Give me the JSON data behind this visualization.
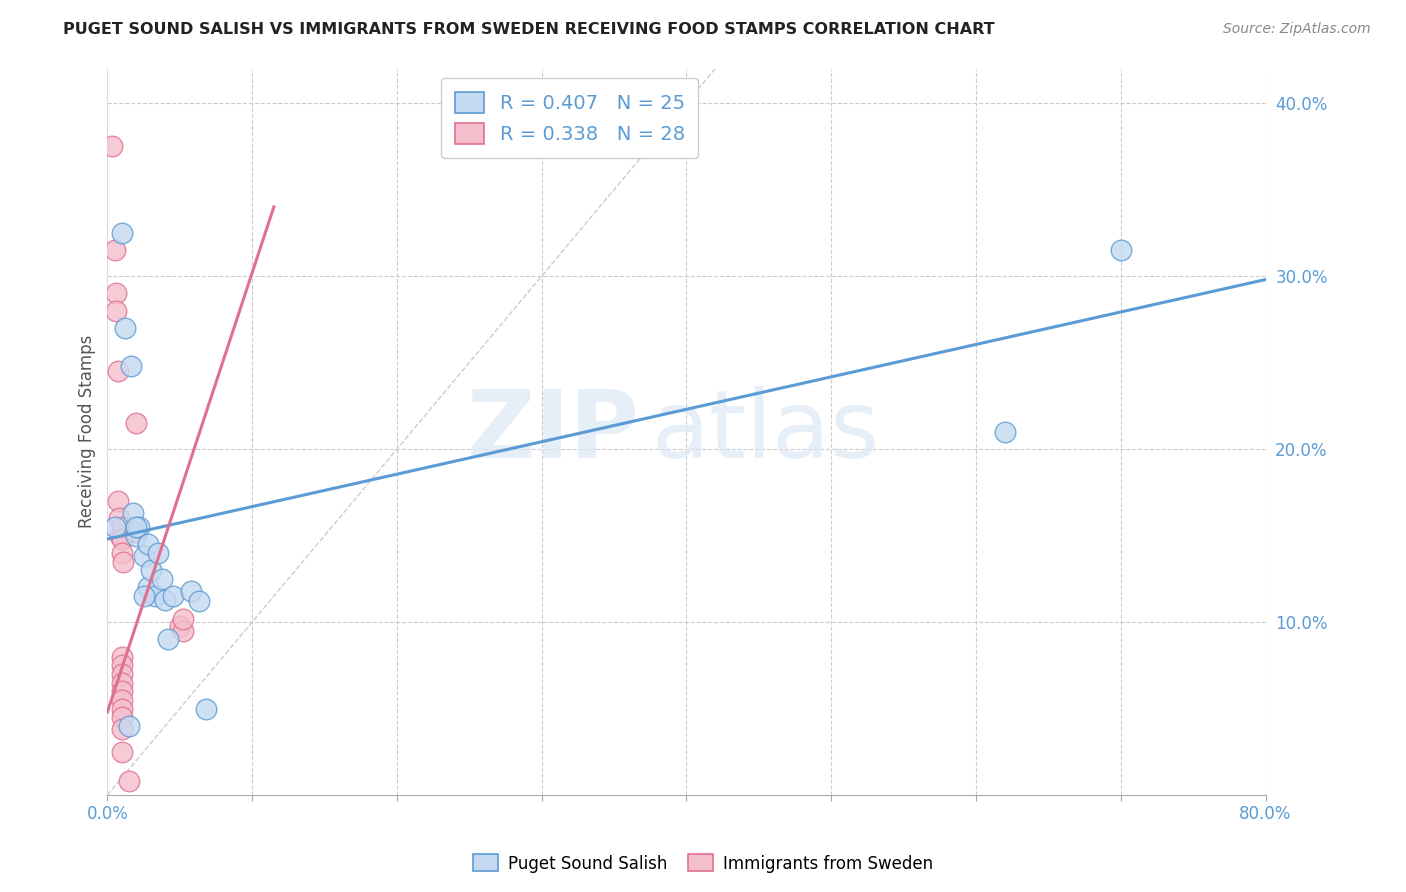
{
  "title": "PUGET SOUND SALISH VS IMMIGRANTS FROM SWEDEN RECEIVING FOOD STAMPS CORRELATION CHART",
  "source": "Source: ZipAtlas.com",
  "ylabel": "Receiving Food Stamps",
  "xlim": [
    0.0,
    0.8
  ],
  "ylim": [
    0.0,
    0.42
  ],
  "xticks": [
    0.0,
    0.1,
    0.2,
    0.3,
    0.4,
    0.5,
    0.6,
    0.7,
    0.8
  ],
  "yticks": [
    0.1,
    0.2,
    0.3,
    0.4
  ],
  "xtick_show": [
    0.0,
    0.8
  ],
  "xtick_labels_full": [
    "0.0%",
    "",
    "",
    "",
    "",
    "",
    "",
    "",
    "80.0%"
  ],
  "ytick_labels": [
    "10.0%",
    "20.0%",
    "30.0%",
    "40.0%"
  ],
  "legend_r_blue": "R = 0.407",
  "legend_n_blue": "N = 25",
  "legend_r_pink": "R = 0.338",
  "legend_n_pink": "N = 28",
  "watermark_zip": "ZIP",
  "watermark_atlas": "atlas",
  "blue_scatter": [
    [
      0.005,
      0.155
    ],
    [
      0.01,
      0.325
    ],
    [
      0.012,
      0.27
    ],
    [
      0.016,
      0.248
    ],
    [
      0.018,
      0.163
    ],
    [
      0.02,
      0.15
    ],
    [
      0.022,
      0.155
    ],
    [
      0.025,
      0.138
    ],
    [
      0.028,
      0.12
    ],
    [
      0.028,
      0.145
    ],
    [
      0.03,
      0.13
    ],
    [
      0.033,
      0.115
    ],
    [
      0.038,
      0.125
    ],
    [
      0.04,
      0.113
    ],
    [
      0.042,
      0.09
    ],
    [
      0.045,
      0.115
    ],
    [
      0.058,
      0.118
    ],
    [
      0.063,
      0.112
    ],
    [
      0.068,
      0.05
    ],
    [
      0.015,
      0.04
    ],
    [
      0.62,
      0.21
    ],
    [
      0.7,
      0.315
    ],
    [
      0.02,
      0.155
    ],
    [
      0.025,
      0.115
    ],
    [
      0.035,
      0.14
    ]
  ],
  "pink_scatter": [
    [
      0.003,
      0.375
    ],
    [
      0.005,
      0.315
    ],
    [
      0.006,
      0.29
    ],
    [
      0.006,
      0.28
    ],
    [
      0.007,
      0.245
    ],
    [
      0.007,
      0.17
    ],
    [
      0.008,
      0.16
    ],
    [
      0.009,
      0.15
    ],
    [
      0.01,
      0.155
    ],
    [
      0.01,
      0.148
    ],
    [
      0.01,
      0.14
    ],
    [
      0.011,
      0.135
    ],
    [
      0.01,
      0.08
    ],
    [
      0.01,
      0.075
    ],
    [
      0.01,
      0.07
    ],
    [
      0.01,
      0.065
    ],
    [
      0.01,
      0.06
    ],
    [
      0.01,
      0.055
    ],
    [
      0.01,
      0.05
    ],
    [
      0.01,
      0.045
    ],
    [
      0.01,
      0.038
    ],
    [
      0.01,
      0.025
    ],
    [
      0.015,
      0.008
    ],
    [
      0.02,
      0.215
    ],
    [
      0.05,
      0.098
    ],
    [
      0.052,
      0.095
    ],
    [
      0.02,
      0.152
    ],
    [
      0.052,
      0.102
    ]
  ],
  "blue_line_x": [
    0.0,
    0.8
  ],
  "blue_line_y": [
    0.148,
    0.298
  ],
  "pink_line_x": [
    0.0,
    0.115
  ],
  "pink_line_y": [
    0.048,
    0.34
  ],
  "diag_line_x": [
    0.0,
    0.42
  ],
  "diag_line_y": [
    0.0,
    0.42
  ],
  "blue_color": "#5b9bd5",
  "blue_fill": "#c5d9f1",
  "pink_color": "#e07090",
  "pink_fill": "#f4bfcc",
  "axis_color": "#5b9bd5",
  "grid_color": "#cccccc",
  "background_color": "#ffffff"
}
